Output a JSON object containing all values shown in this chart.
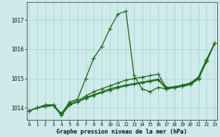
{
  "xlabel": "Graphe pression niveau de la mer (hPa)",
  "background_color": "#ceeaea",
  "grid_color": "#aad4d4",
  "line_color": "#1e6b1e",
  "hours": [
    0,
    1,
    2,
    3,
    4,
    5,
    6,
    7,
    8,
    9,
    10,
    11,
    12,
    13,
    14,
    15,
    16,
    17,
    18,
    19,
    20,
    21,
    22,
    23
  ],
  "series1": [
    1013.9,
    1014.0,
    1014.1,
    1014.1,
    1013.8,
    1014.2,
    1014.3,
    1015.0,
    1015.7,
    1016.1,
    1016.7,
    1017.2,
    1017.3,
    1015.1,
    1014.65,
    1014.55,
    1014.7,
    1014.65,
    1014.7,
    1014.75,
    1014.8,
    1015.05,
    1015.65,
    1016.2
  ],
  "series2": [
    1013.9,
    1014.0,
    1014.1,
    1014.1,
    1013.8,
    1014.15,
    1014.25,
    1014.4,
    1014.55,
    1014.65,
    1014.75,
    1014.85,
    1014.95,
    1015.0,
    1015.05,
    1015.1,
    1015.15,
    1014.7,
    1014.72,
    1014.78,
    1014.85,
    1015.05,
    1015.65,
    1016.2
  ],
  "series3": [
    1013.9,
    1014.0,
    1014.05,
    1014.08,
    1013.75,
    1014.1,
    1014.2,
    1014.35,
    1014.45,
    1014.55,
    1014.65,
    1014.72,
    1014.78,
    1014.83,
    1014.88,
    1014.93,
    1014.98,
    1014.68,
    1014.7,
    1014.75,
    1014.82,
    1015.0,
    1015.6,
    1016.2
  ],
  "series4": [
    1013.9,
    1014.0,
    1014.05,
    1014.08,
    1013.75,
    1014.1,
    1014.2,
    1014.32,
    1014.42,
    1014.52,
    1014.6,
    1014.68,
    1014.75,
    1014.8,
    1014.85,
    1014.9,
    1014.95,
    1014.65,
    1014.68,
    1014.73,
    1014.8,
    1014.98,
    1015.58,
    1016.2
  ],
  "ylim": [
    1013.6,
    1017.6
  ],
  "yticks": [
    1014,
    1015,
    1016,
    1017
  ],
  "markersize": 2.5,
  "linewidth": 1.0
}
